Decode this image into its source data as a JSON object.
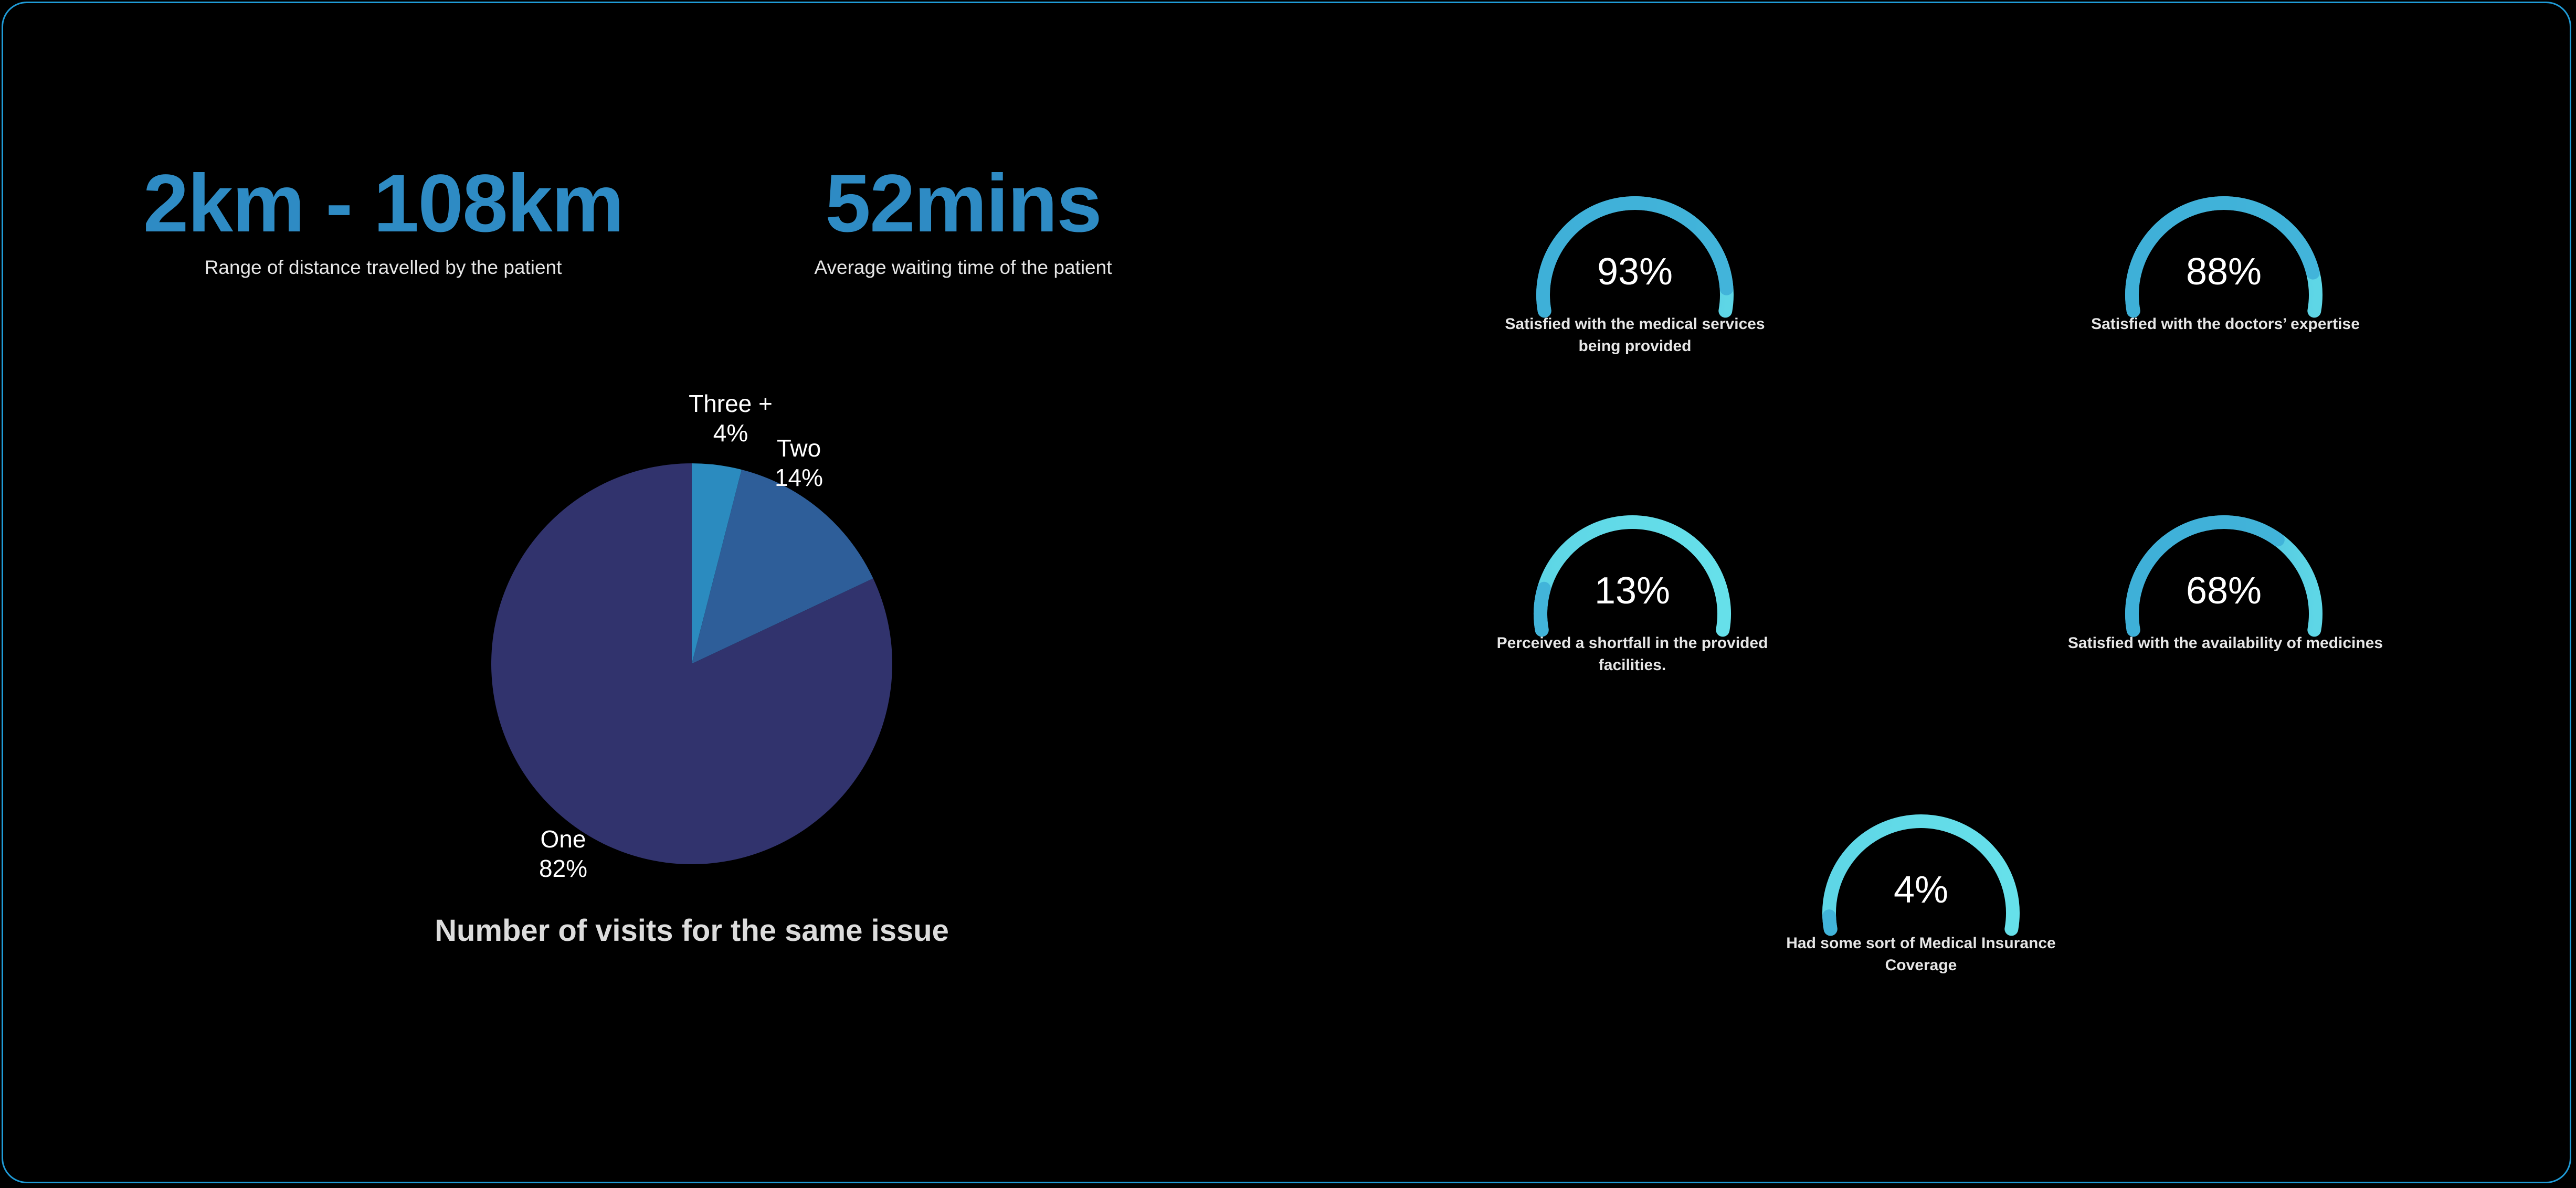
{
  "colors": {
    "background": "#000000",
    "frame_border": "#1f9bd7",
    "stat_value": "#2e8bc4",
    "pie_one": "#31336d",
    "pie_two": "#2e5e99",
    "pie_three_plus": "#2b8bbf",
    "gauge_arc": "#3fb0d8",
    "gauge_arc_light": "#5ed6e6"
  },
  "stats": [
    {
      "value": "2km - 108km",
      "caption": "Range of distance travelled by the patient"
    },
    {
      "value": "52mins",
      "caption": "Average waiting time of the patient"
    }
  ],
  "chart_data": [
    {
      "type": "pie",
      "title": "Number of visits for the same issue",
      "slices": [
        {
          "label": "Three +",
          "value": 4,
          "value_label": "4%"
        },
        {
          "label": "Two",
          "value": 14,
          "value_label": "14%"
        },
        {
          "label": "One",
          "value": 82,
          "value_label": "82%"
        }
      ]
    },
    {
      "type": "gauge",
      "gauges": [
        {
          "value": 93,
          "value_label": "93%",
          "caption": "Satisfied with the medical services being provided"
        },
        {
          "value": 88,
          "value_label": "88%",
          "caption": "Satisfied with the doctors’ expertise"
        },
        {
          "value": 13,
          "value_label": "13%",
          "caption": "Perceived a shortfall in the provided facilities."
        },
        {
          "value": 68,
          "value_label": "68%",
          "caption": "Satisfied with the availability of medicines"
        },
        {
          "value": 4,
          "value_label": "4%",
          "caption": "Had some sort of Medical Insurance Coverage"
        }
      ]
    }
  ]
}
